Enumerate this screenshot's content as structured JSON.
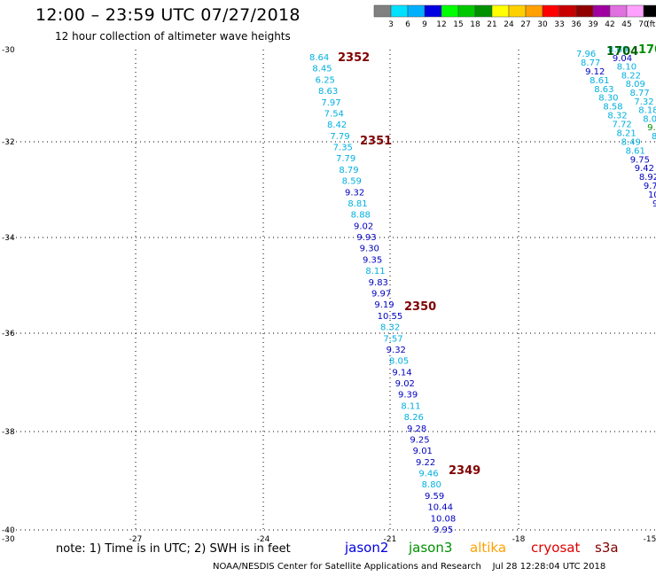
{
  "header": {
    "title": "12:00 – 23:59 UTC 07/27/2018",
    "subtitle": "12 hour collection of altimeter wave heights"
  },
  "legend": {
    "labels": [
      "3",
      "6",
      "9",
      "12",
      "15",
      "18",
      "21",
      "24",
      "27",
      "30",
      "33",
      "36",
      "39",
      "42",
      "45",
      "70",
      "(ft)"
    ],
    "colors": [
      "#808080",
      "#00e0ff",
      "#00b0ff",
      "#0000e0",
      "#00ff00",
      "#00c800",
      "#009000",
      "#ffff00",
      "#ffd000",
      "#ffa000",
      "#ff0000",
      "#c80000",
      "#900000",
      "#a000a0",
      "#e070e0",
      "#ffa0ff",
      "#000000"
    ]
  },
  "axes": {
    "x_ticks": [
      "-27",
      "-24",
      "-21",
      "-18",
      "-15"
    ],
    "y_ticks": [
      "-30",
      "-32",
      "-34",
      "-36",
      "-38",
      "-40"
    ],
    "corner_label": "-30"
  },
  "passes": [
    {
      "label": "2352",
      "color": "#800000"
    },
    {
      "label": "2351",
      "color": "#800000"
    },
    {
      "label": "2350",
      "color": "#800000"
    },
    {
      "label": "2349",
      "color": "#800000"
    },
    {
      "label": "1704",
      "color": "#006000"
    },
    {
      "label": "170",
      "color": "#009000"
    }
  ],
  "track_main": [
    "8.64",
    "8.45",
    "6.25",
    "8.63",
    "7.97",
    "7.54",
    "8.42",
    "7.79",
    "7.35",
    "7.79",
    "8.79",
    "8.59",
    "9.32",
    "8.81",
    "8.88",
    "9.02",
    "9.93",
    "9.30",
    "9.35",
    "8.11",
    "9.83",
    "9.97",
    "9.19",
    "10.55",
    "8.32",
    "7.57",
    "9.32",
    "8.05",
    "9.14",
    "9.02",
    "9.39",
    "8.11",
    "8.26",
    "9.28",
    "9.25",
    "9.01",
    "9.22",
    "9.46",
    "8.80",
    "9.59",
    "10.44",
    "10.08",
    "9.95"
  ],
  "track_main_colors": [
    "#00b0e0",
    "#00b0e0",
    "#00b0e0",
    "#00b0e0",
    "#00b0e0",
    "#00b0e0",
    "#00b0e0",
    "#00b0e0",
    "#00b0e0",
    "#00b0e0",
    "#00b0e0",
    "#00b0e0",
    "#0000c0",
    "#00b0e0",
    "#00b0e0",
    "#0000c0",
    "#0000c0",
    "#0000c0",
    "#0000c0",
    "#00b0e0",
    "#0000c0",
    "#0000c0",
    "#0000c0",
    "#0000c0",
    "#00b0e0",
    "#00b0e0",
    "#0000c0",
    "#00b0e0",
    "#0000c0",
    "#0000c0",
    "#0000c0",
    "#00b0e0",
    "#00b0e0",
    "#0000c0",
    "#0000c0",
    "#0000c0",
    "#0000c0",
    "#00b0e0",
    "#00b0e0",
    "#0000c0",
    "#0000c0",
    "#0000c0",
    "#0000c0"
  ],
  "track_a": [
    "7.96",
    "8.77",
    "9.12",
    "8.61",
    "8.63",
    "8.30",
    "8.58",
    "8.32",
    "7.72",
    "8.21",
    "8.49",
    "8.61",
    "9.75",
    "9.42",
    "8.92",
    "9.7",
    "10.",
    "9"
  ],
  "track_a_colors": [
    "#00b0e0",
    "#00b0e0",
    "#0000c0",
    "#00b0e0",
    "#00b0e0",
    "#00b0e0",
    "#00b0e0",
    "#00b0e0",
    "#00b0e0",
    "#00b0e0",
    "#00b0e0",
    "#00b0e0",
    "#0000c0",
    "#0000c0",
    "#0000c0",
    "#0000c0",
    "#0000c0",
    "#0000c0"
  ],
  "track_b": [
    "8.69",
    "9.04",
    "8.10",
    "8.22",
    "8.09",
    "8.77",
    "7.32",
    "8.18",
    "8.0",
    "9.",
    "8"
  ],
  "track_b_colors": [
    "#00b0e0",
    "#0000c0",
    "#00b0e0",
    "#00b0e0",
    "#00b0e0",
    "#00b0e0",
    "#00b0e0",
    "#00b0e0",
    "#00b0e0",
    "#009000",
    "#00b0e0"
  ],
  "footer": {
    "note": "note: 1) Time is in UTC; 2) SWH is in feet",
    "satellites": [
      {
        "name": "jason2",
        "color": "#0000e0"
      },
      {
        "name": "jason3",
        "color": "#009000"
      },
      {
        "name": "altika",
        "color": "#ffa000"
      },
      {
        "name": "cryosat",
        "color": "#e00000"
      },
      {
        "name": "s3a",
        "color": "#800000"
      }
    ],
    "credit": "NOAA/NESDIS Center for Satellite Applications and Research    Jul 28 12:28:04 UTC 2018"
  }
}
